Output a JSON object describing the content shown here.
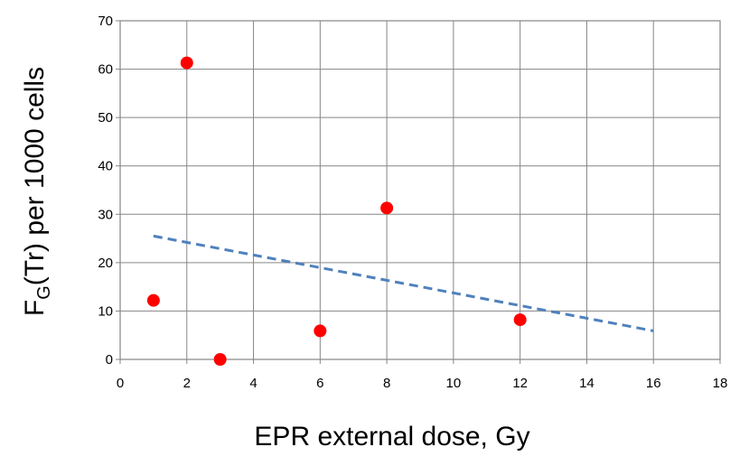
{
  "chart_data": {
    "type": "scatter",
    "xlabel": "EPR external dose, Gy",
    "ylabel": {
      "main": "F",
      "sub": "G",
      "rest": "(Tr) per 1000 cells"
    },
    "xlim": [
      0,
      18
    ],
    "ylim": [
      0,
      70
    ],
    "x_ticks": [
      "0",
      "2",
      "4",
      "6",
      "8",
      "10",
      "12",
      "14",
      "16",
      "18"
    ],
    "y_ticks": [
      "0",
      "10",
      "20",
      "30",
      "40",
      "50",
      "60",
      "70"
    ],
    "grid": true,
    "series": [
      {
        "points": [
          {
            "x": 1,
            "y": 12.2
          },
          {
            "x": 2,
            "y": 61.3
          },
          {
            "x": 3,
            "y": 0
          },
          {
            "x": 6,
            "y": 5.9
          },
          {
            "x": 8,
            "y": 31.3
          },
          {
            "x": 12,
            "y": 8.2
          }
        ],
        "color": "#ff0000"
      }
    ],
    "trendline": {
      "style": "dashed",
      "color": "#4f81bd",
      "x": [
        1,
        16
      ],
      "y": [
        25.5,
        5.9
      ]
    }
  }
}
